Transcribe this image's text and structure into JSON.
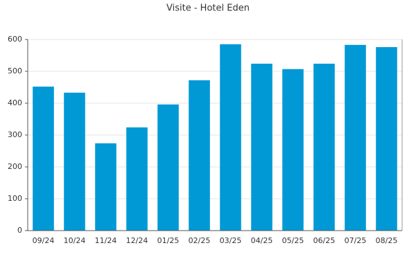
{
  "chart_data": {
    "type": "bar",
    "title": "Visite - Hotel Eden",
    "categories": [
      "09/24",
      "10/24",
      "11/24",
      "12/24",
      "01/25",
      "02/25",
      "03/25",
      "04/25",
      "05/25",
      "06/25",
      "07/25",
      "08/25"
    ],
    "values": [
      452,
      433,
      274,
      324,
      396,
      472,
      585,
      524,
      507,
      524,
      583,
      576
    ],
    "color": "#0099d6",
    "ylim": [
      0,
      600
    ],
    "yticks": [
      0,
      100,
      200,
      300,
      400,
      500,
      600
    ],
    "grid": true
  }
}
